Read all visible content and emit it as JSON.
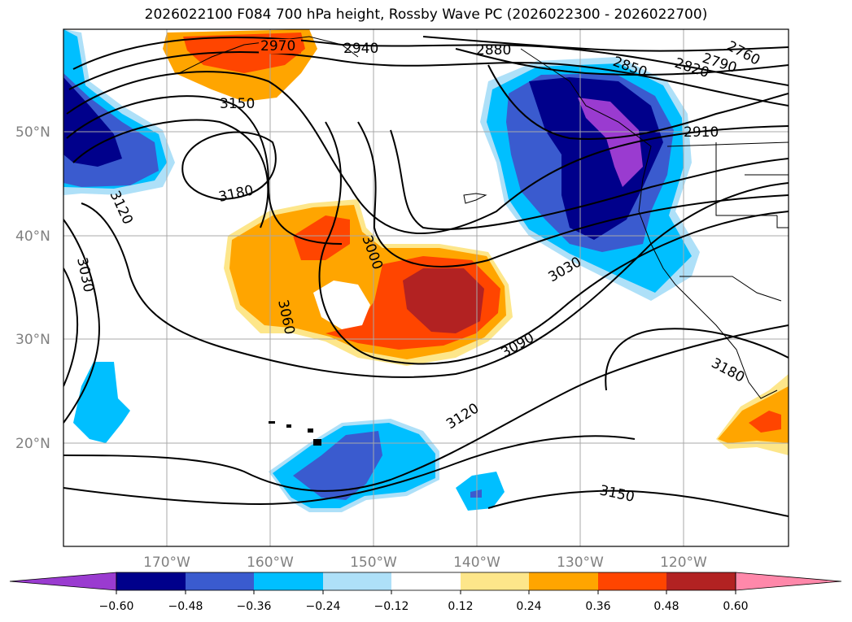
{
  "title": "2026022100 F084 700 hPa height, Rossby Wave PC (2026022300 - 2026022700)",
  "map": {
    "latitude_labels": [
      "50°N",
      "40°N",
      "30°N",
      "20°N"
    ],
    "longitude_labels": [
      "170°W",
      "160°W",
      "150°W",
      "140°W",
      "130°W",
      "120°W"
    ],
    "height_contour_labels": [
      "2970",
      "2940",
      "2880",
      "2850",
      "2820",
      "2790",
      "2760",
      "3150",
      "3180",
      "3120",
      "3030",
      "3000",
      "3060",
      "3030",
      "3090",
      "3120",
      "2910",
      "3180",
      "3150"
    ]
  },
  "colorbar": {
    "ticks": [
      "−0.60",
      "−0.48",
      "−0.36",
      "−0.24",
      "−0.12",
      "0.12",
      "0.24",
      "0.36",
      "0.48",
      "0.60"
    ],
    "colors": [
      "#9a3bd0",
      "#00008b",
      "#3a5bcf",
      "#00bfff",
      "#aee0f8",
      "#ffffff",
      "#fde68a",
      "#ffa500",
      "#ff4500",
      "#b22222",
      "#ff88aa"
    ]
  }
}
